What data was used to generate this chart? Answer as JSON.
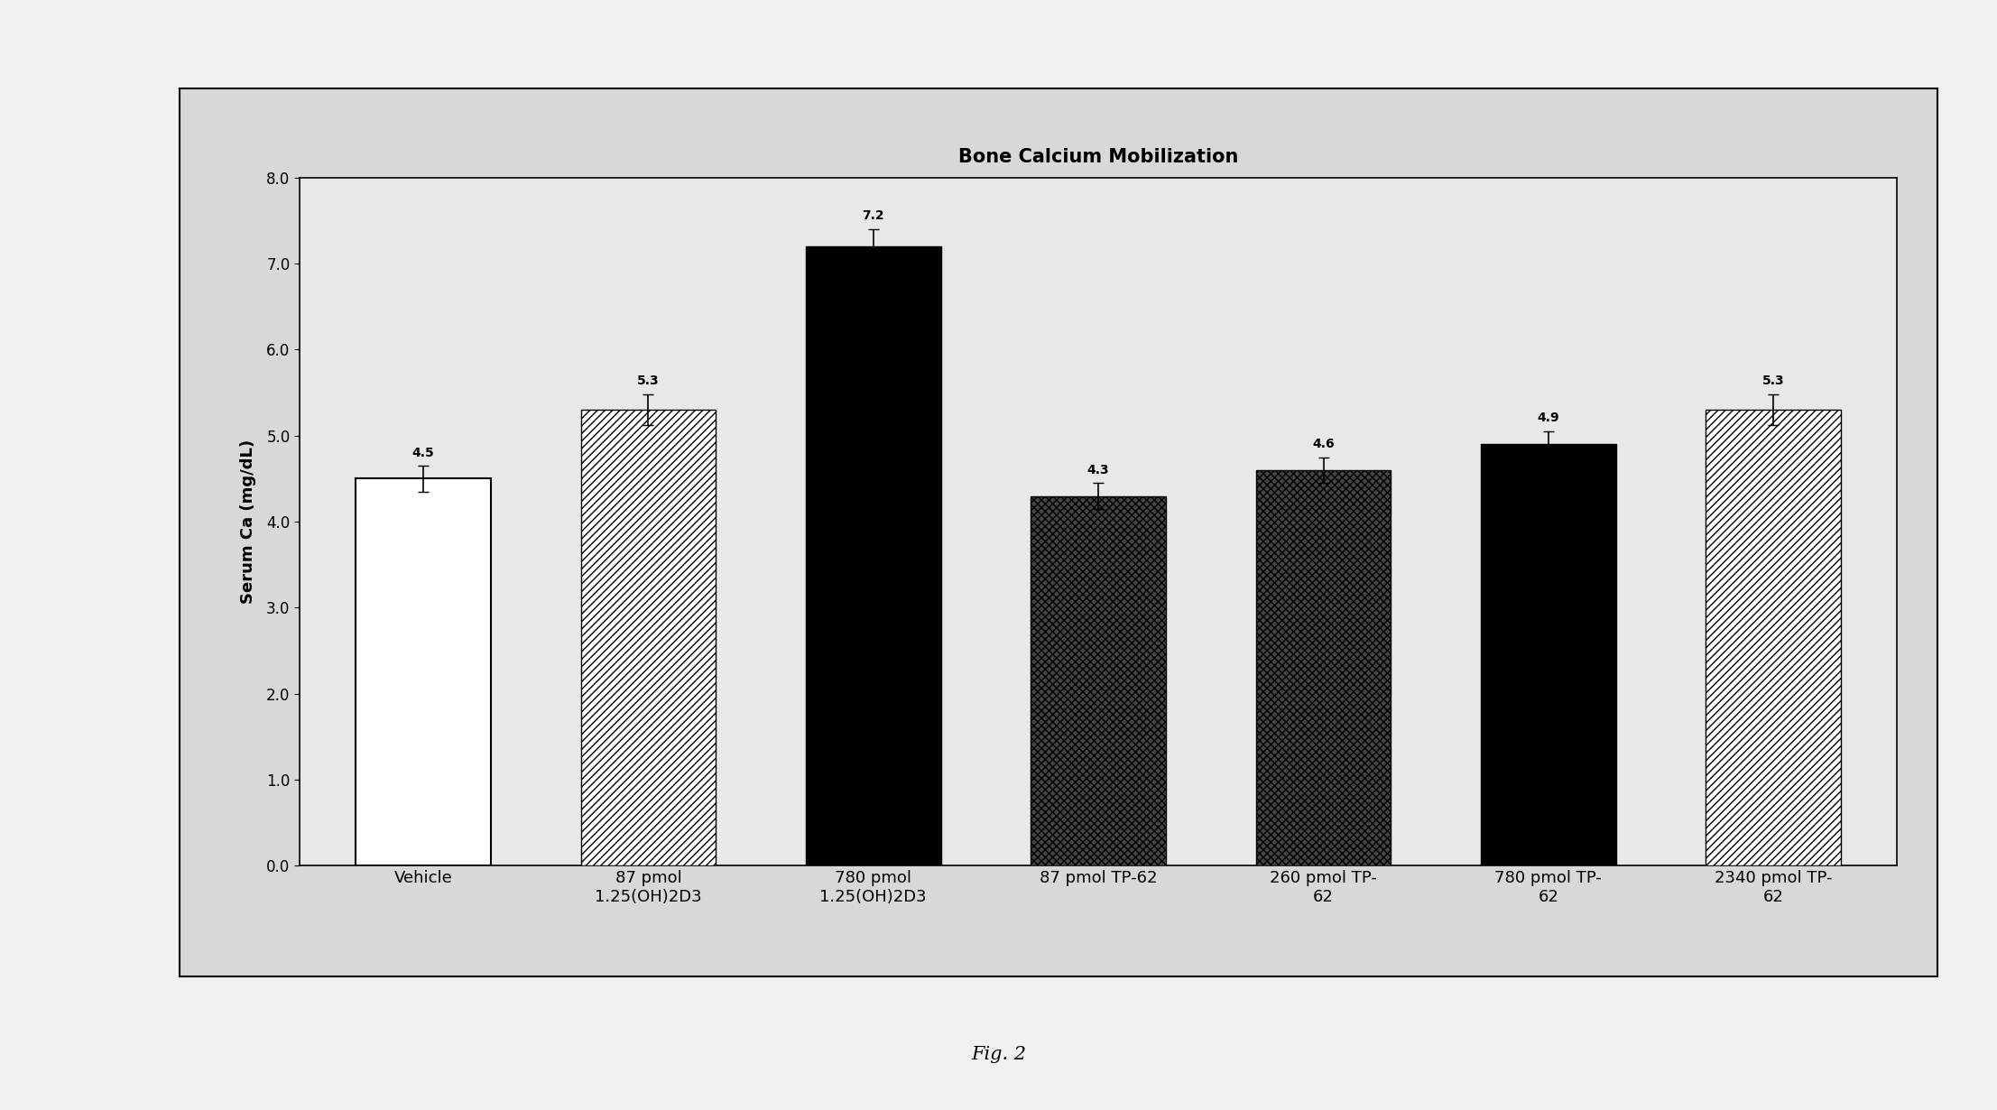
{
  "title": "Bone Calcium Mobilization",
  "ylabel": "Serum Ca (mg/dL)",
  "figcaption": "Fig. 2",
  "categories": [
    "Vehicle",
    "87 pmol\n1.25(OH)2D3",
    "780 pmol\n1.25(OH)2D3",
    "87 pmol TP-62",
    "260 pmol TP-\n62",
    "780 pmol TP-\n62",
    "2340 pmol TP-\n62"
  ],
  "values": [
    4.5,
    5.3,
    7.2,
    4.3,
    4.6,
    4.9,
    5.3
  ],
  "errors": [
    0.15,
    0.18,
    0.2,
    0.15,
    0.15,
    0.15,
    0.18
  ],
  "value_labels": [
    "4.5",
    "5.3",
    "7.2",
    "4.3",
    "4.6",
    "4.9",
    "5.3"
  ],
  "ylim": [
    0.0,
    8.0
  ],
  "yticks": [
    0.0,
    1.0,
    2.0,
    3.0,
    4.0,
    5.0,
    6.0,
    7.0,
    8.0
  ],
  "bar_styles": [
    {
      "facecolor": "white",
      "edgecolor": "black",
      "hatch": "",
      "linewidth": 1.5
    },
    {
      "facecolor": "white",
      "edgecolor": "black",
      "hatch": "////",
      "linewidth": 1.0
    },
    {
      "facecolor": "black",
      "edgecolor": "black",
      "hatch": "",
      "linewidth": 1.0
    },
    {
      "facecolor": "#444444",
      "edgecolor": "black",
      "hatch": "xxxx",
      "linewidth": 1.0
    },
    {
      "facecolor": "#444444",
      "edgecolor": "black",
      "hatch": "xxxx",
      "linewidth": 1.0
    },
    {
      "facecolor": "black",
      "edgecolor": "black",
      "hatch": "",
      "linewidth": 1.0
    },
    {
      "facecolor": "white",
      "edgecolor": "black",
      "hatch": "////",
      "linewidth": 1.0
    }
  ],
  "title_fontsize": 15,
  "label_fontsize": 13,
  "tick_fontsize": 12,
  "value_label_fontsize": 10,
  "caption_fontsize": 15,
  "bar_width": 0.6,
  "figure_bg_color": "#f0f0f0",
  "outer_box_bg_color": "#d8d8d8",
  "plot_area_bg_color": "#e8e8e8"
}
